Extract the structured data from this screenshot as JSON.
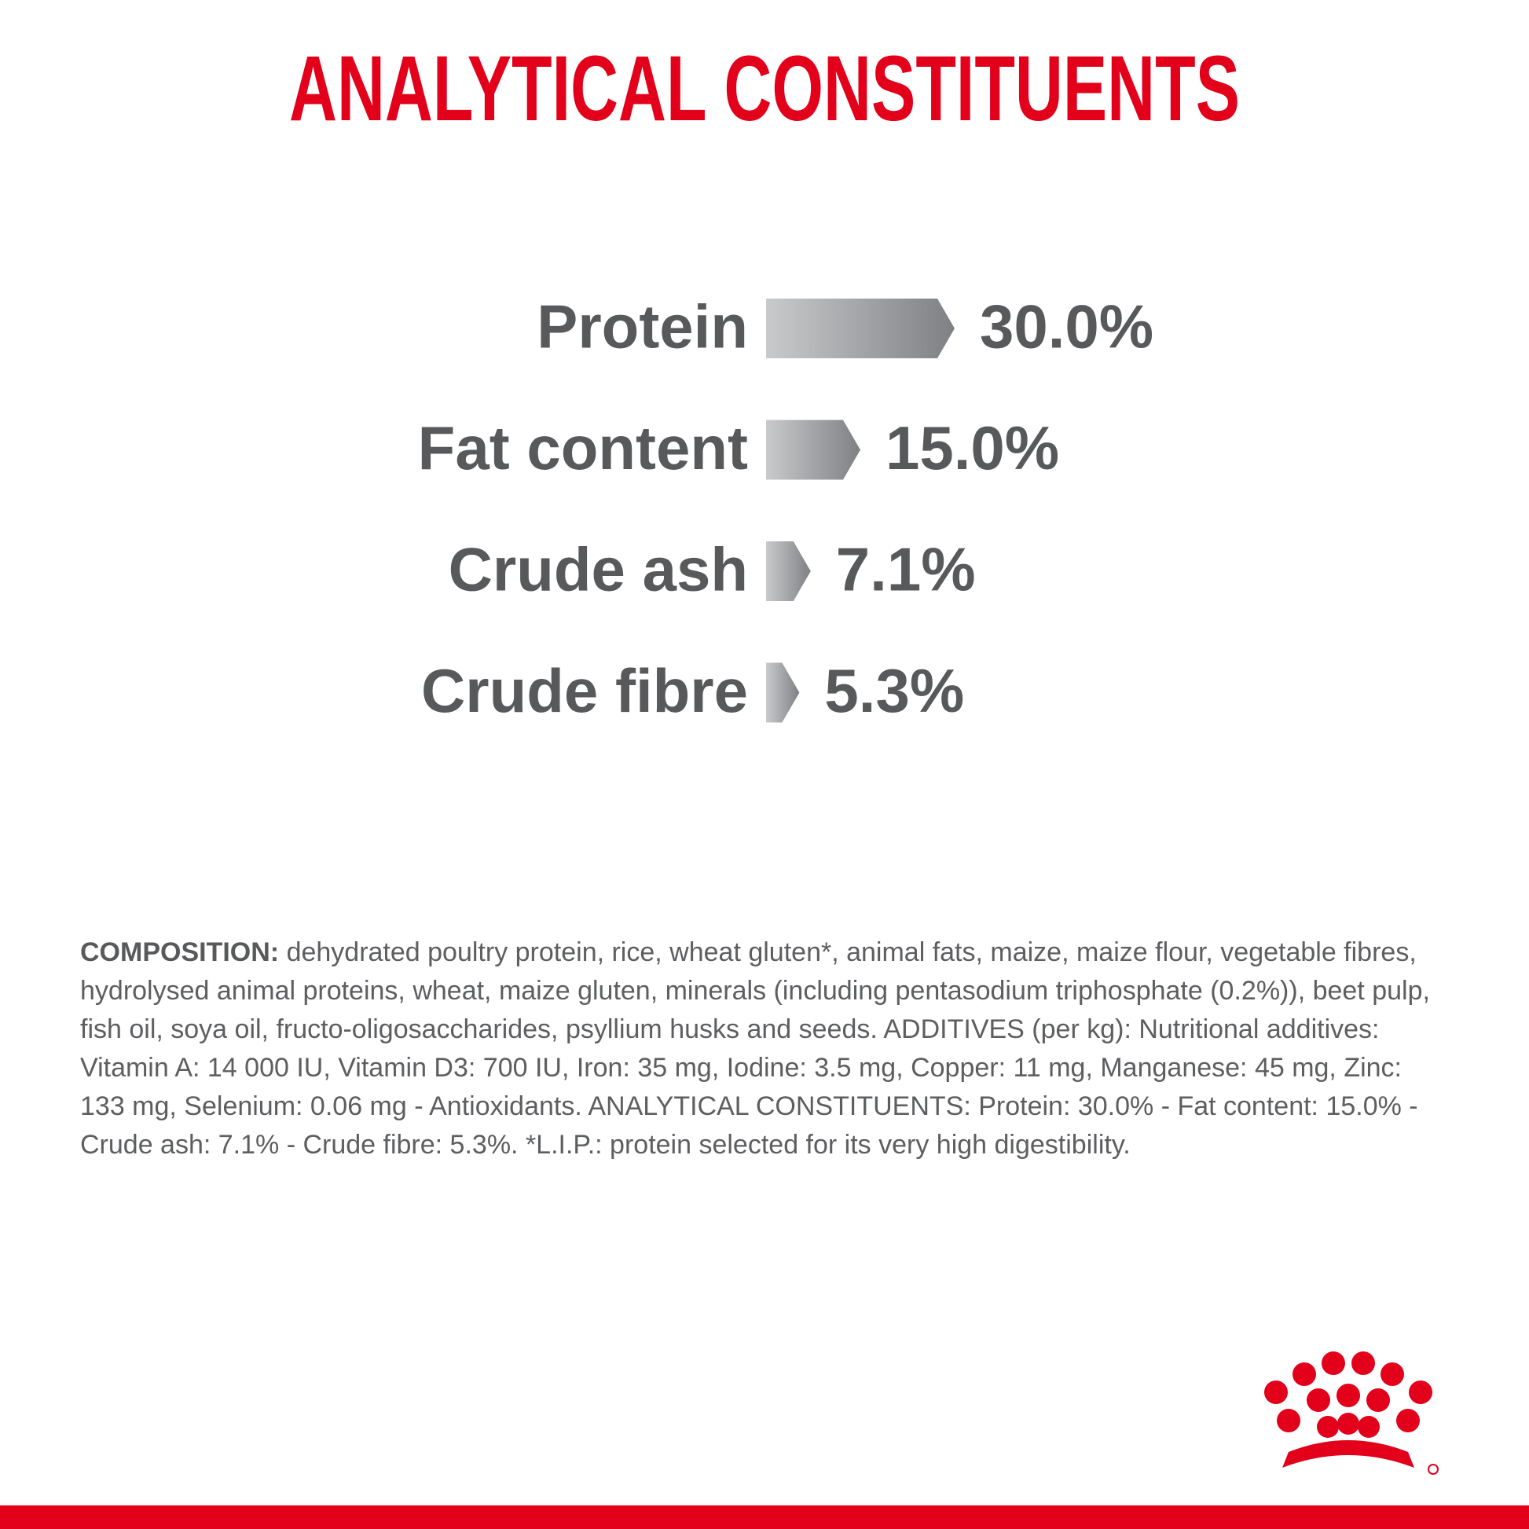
{
  "chart_data": {
    "type": "bar",
    "orientation": "horizontal",
    "title": "ANALYTICAL CONSTITUENTS",
    "categories": [
      "Protein",
      "Fat content",
      "Crude ash",
      "Crude fibre"
    ],
    "values": [
      30.0,
      15.0,
      7.1,
      5.3
    ],
    "value_labels": [
      "30.0%",
      "15.0%",
      "7.1%",
      "5.3%"
    ],
    "color": "#7e8083",
    "title_color": "#e2001a"
  },
  "composition": {
    "heading": "COMPOSITION:",
    "text": "dehydrated poultry protein, rice, wheat gluten*, animal fats, maize, maize flour, vegetable fibres, hydrolysed animal proteins, wheat, maize gluten, minerals (including pentasodium triphosphate (0.2%)), beet pulp, fish oil, soya oil, fructo-oligosaccharides, psyllium husks and seeds. ADDITIVES (per kg): Nutritional additives: Vitamin A: 14 000 IU, Vitamin D3: 700 IU, Iron: 35 mg, Iodine: 3.5 mg, Copper: 11 mg, Manganese: 45 mg, Zinc: 133 mg, Selenium: 0.06 mg - Antioxidants. ANALYTICAL CONSTITUENTS: Protein: 30.0% - Fat content: 15.0% - Crude ash: 7.1% - Crude fibre: 5.3%. *L.I.P.: protein selected for its very high digestibility."
  }
}
